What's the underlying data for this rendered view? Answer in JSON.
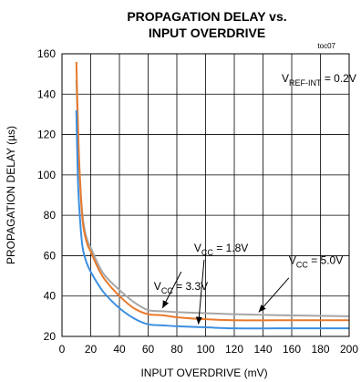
{
  "chart_data": {
    "type": "line",
    "title_line1": "PROPAGATION DELAY vs.",
    "title_line2": "INPUT OVERDRIVE",
    "figure_code": "toc07",
    "xlabel": "INPUT OVERDRIVE (mV)",
    "ylabel": "PROPAGATION DELAY (µs)",
    "xlim": [
      0,
      200
    ],
    "ylim": [
      20,
      160
    ],
    "xticks": [
      0,
      20,
      40,
      60,
      80,
      100,
      120,
      140,
      160,
      180,
      200
    ],
    "yticks": [
      20,
      40,
      60,
      80,
      100,
      120,
      140,
      160
    ],
    "grid": true,
    "series": [
      {
        "name": "V_CC = 1.8V",
        "color": "#a6a6a6",
        "x": [
          10,
          11,
          12,
          14,
          16,
          18,
          20,
          25,
          30,
          40,
          50,
          60,
          70,
          80,
          100,
          120,
          150,
          200
        ],
        "y": [
          147,
          125,
          105,
          82,
          72,
          67,
          64,
          56,
          50,
          43,
          37,
          33,
          32.5,
          32,
          31.5,
          31,
          30.5,
          30
        ]
      },
      {
        "name": "V_CC = 3.3V",
        "color": "#e97a2c",
        "x": [
          10,
          11,
          12,
          14,
          16,
          18,
          20,
          25,
          30,
          40,
          50,
          60,
          70,
          80,
          100,
          120,
          150,
          200
        ],
        "y": [
          156,
          128,
          106,
          80,
          70,
          65,
          62,
          54,
          48,
          40,
          34,
          31,
          30.5,
          29.5,
          28.5,
          28,
          28,
          28
        ]
      },
      {
        "name": "V_CC = 5.0V",
        "color": "#3d8fe0",
        "x": [
          10,
          11,
          12,
          14,
          16,
          18,
          20,
          25,
          30,
          40,
          50,
          60,
          70,
          80,
          100,
          120,
          150,
          200
        ],
        "y": [
          132,
          100,
          84,
          66,
          59,
          55,
          52,
          46,
          41,
          34,
          29,
          26,
          25.5,
          25,
          24.5,
          24,
          24,
          24
        ]
      }
    ],
    "annotations": {
      "vref": {
        "prefix": "V",
        "sub": "REF-INT",
        "suffix": " = 0.2V",
        "x": 153,
        "y": 146
      },
      "vcc18": {
        "prefix": "V",
        "sub": "CC",
        "suffix": " = 1.8V",
        "x": 92,
        "y": 62
      },
      "vcc33": {
        "prefix": "V",
        "sub": "CC",
        "suffix": " = 3.3V",
        "x": 64,
        "y": 43
      },
      "vcc50": {
        "prefix": "V",
        "sub": "CC",
        "suffix": " = 5.0V",
        "x": 158,
        "y": 56
      }
    },
    "arrows": [
      {
        "from": [
          83,
          52
        ],
        "to": [
          70,
          34
        ]
      },
      {
        "from": [
          99,
          58
        ],
        "to": [
          95,
          26
        ]
      },
      {
        "from": [
          158,
          49
        ],
        "to": [
          137,
          32
        ]
      }
    ]
  }
}
